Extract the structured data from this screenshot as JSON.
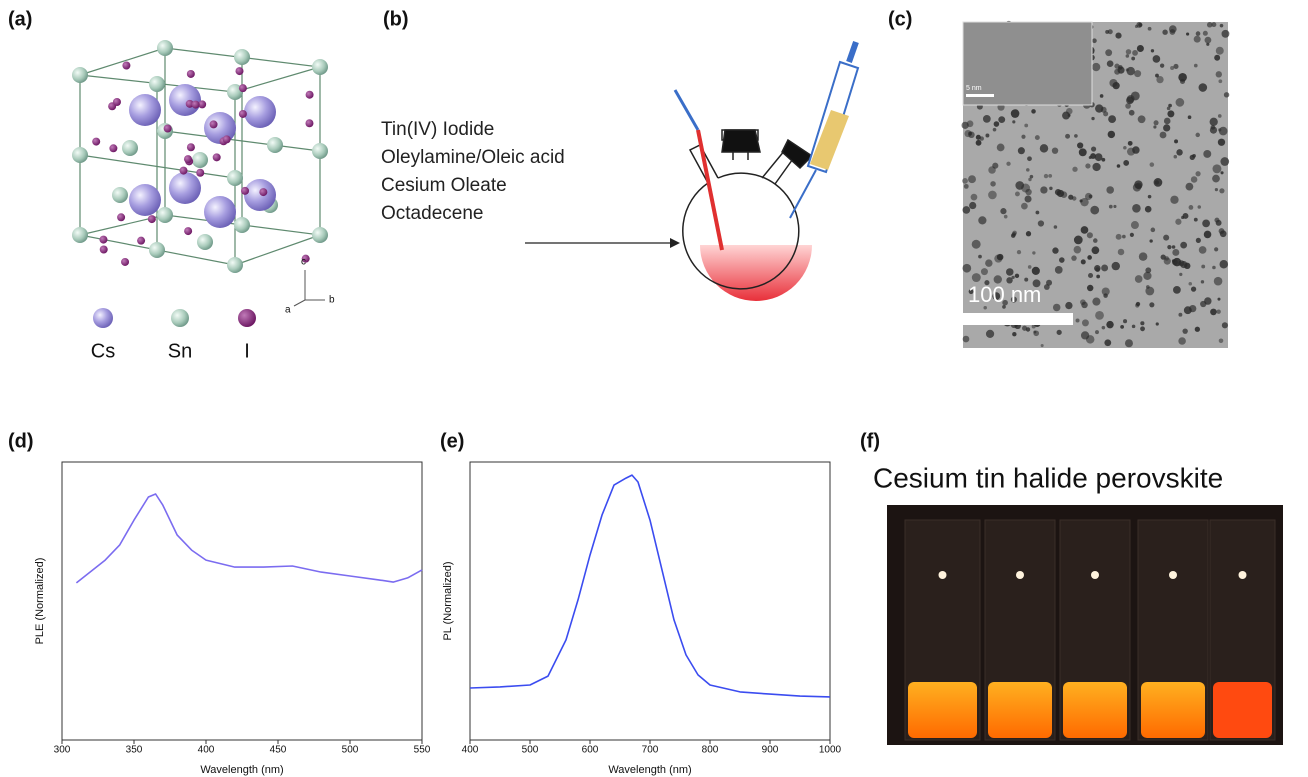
{
  "panels": {
    "a": {
      "label": "(a)",
      "legend": [
        "Cs",
        "Sn",
        "I"
      ],
      "axes": [
        "c",
        "a",
        "b"
      ]
    },
    "b": {
      "label": "(b)",
      "reagents": [
        "Tin(IV) Iodide",
        "Oleylamine/Oleic acid",
        "Cesium Oleate",
        "Octadecene"
      ]
    },
    "c": {
      "label": "(c)",
      "scale_bar": "100 nm",
      "inset_scale_bar": "5 nm"
    },
    "d": {
      "label": "(d)"
    },
    "e": {
      "label": "(e)"
    },
    "f": {
      "label": "(f)",
      "title": "Cesium tin halide perovskite"
    }
  },
  "chart_data": [
    {
      "type": "line",
      "x_label": "Wavelength (nm)",
      "y_label": "PLE (Normalized)",
      "color": "#7b6cf0",
      "x": [
        310,
        330,
        340,
        350,
        360,
        365,
        370,
        380,
        390,
        400,
        420,
        440,
        460,
        480,
        500,
        520,
        530,
        540,
        550
      ],
      "values": [
        0.565,
        0.647,
        0.701,
        0.791,
        0.874,
        0.885,
        0.845,
        0.737,
        0.683,
        0.647,
        0.622,
        0.622,
        0.626,
        0.604,
        0.59,
        0.576,
        0.568,
        0.583,
        0.612
      ],
      "xlim": [
        300,
        550
      ],
      "xticks": [
        300,
        350,
        400,
        450,
        500,
        550
      ],
      "ylim": [
        0,
        1
      ]
    },
    {
      "type": "line",
      "x_label": "Wavelength (nm)",
      "y_label": "PL (Normalized)",
      "color": "#3b4cf0",
      "x": [
        400,
        450,
        500,
        530,
        560,
        580,
        600,
        620,
        640,
        660,
        670,
        680,
        700,
        720,
        740,
        760,
        780,
        800,
        850,
        900,
        950,
        1000
      ],
      "values": [
        0.187,
        0.191,
        0.198,
        0.23,
        0.36,
        0.504,
        0.665,
        0.809,
        0.917,
        0.942,
        0.953,
        0.928,
        0.791,
        0.612,
        0.432,
        0.306,
        0.234,
        0.198,
        0.173,
        0.165,
        0.158,
        0.155
      ],
      "xlim": [
        400,
        1000
      ],
      "xticks": [
        400,
        500,
        600,
        700,
        800,
        900,
        1000
      ],
      "ylim": [
        0,
        1
      ]
    }
  ]
}
